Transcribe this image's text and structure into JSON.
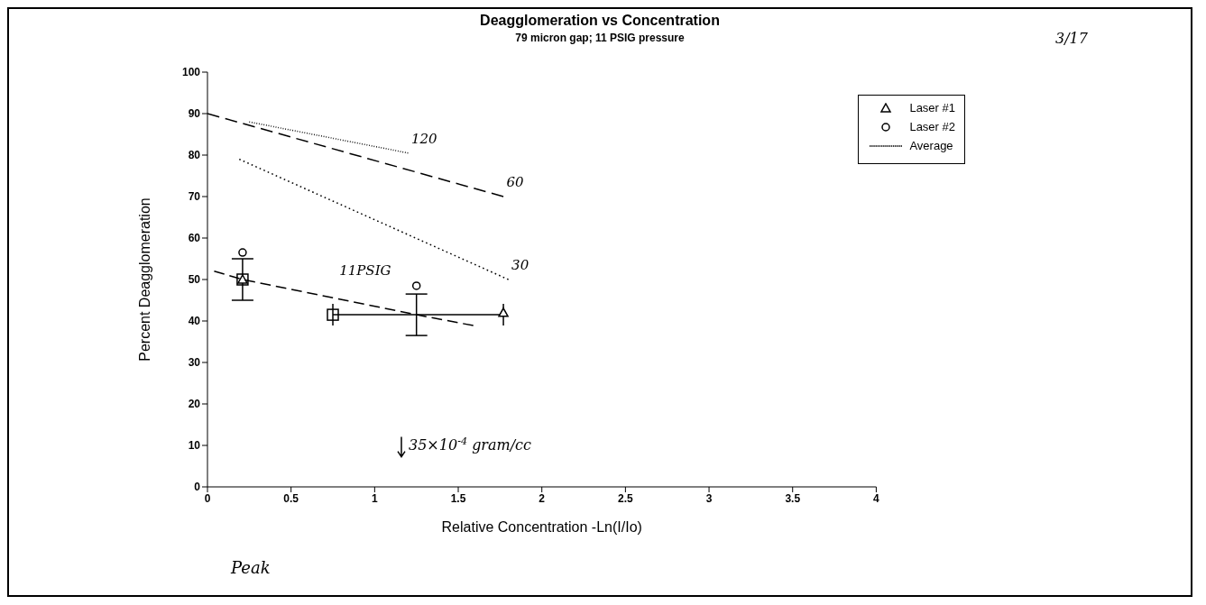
{
  "chart_data": {
    "type": "scatter",
    "title": "Deagglomeration vs  Concentration",
    "subtitle": "79 micron gap; 11 PSIG pressure",
    "xlabel": "Relative Concentration -Ln(I/Io)",
    "ylabel": "Percent Deagglomeration",
    "xlim": [
      0,
      4
    ],
    "xticks": [
      0,
      0.5,
      1,
      1.5,
      2,
      2.5,
      3,
      3.5,
      4
    ],
    "ylim": [
      0,
      100
    ],
    "yticks": [
      0,
      10,
      20,
      30,
      40,
      50,
      60,
      70,
      80,
      90,
      100
    ],
    "grid": false,
    "legend": "top right",
    "series": [
      {
        "color": "#000000",
        "marker": "square",
        "x": [
          0.21,
          0.75
        ],
        "values": [
          50,
          41.5
        ]
      },
      {
        "name": "Laser #1",
        "color": "#000000",
        "marker": "triangle",
        "x": [
          0.21,
          1.77
        ],
        "values": [
          50,
          42
        ]
      },
      {
        "name": "Laser #2",
        "color": "#000000",
        "marker": "circle",
        "x": [
          0.21,
          1.25
        ],
        "values": [
          56.5,
          48.5
        ]
      },
      {
        "name": "Average",
        "type": "line",
        "color": "#000000",
        "marker": "none",
        "line_style": "dashed",
        "x": [
          0.04,
          0.21,
          1.25,
          1.59
        ],
        "values": [
          52,
          50,
          41.5,
          38.9
        ],
        "errors": [
          null,
          [
            45,
            55
          ],
          [
            36.5,
            46.5
          ],
          null
        ],
        "xerrors": [
          null,
          null,
          [
            0.75,
            1.77
          ],
          null
        ]
      },
      {
        "name": "120",
        "type": "line",
        "color": "#000000",
        "marker": "none",
        "line_style": "dotted",
        "x": [
          0.25,
          1.2
        ],
        "values": [
          88,
          80.5
        ]
      },
      {
        "name": "60",
        "type": "line",
        "color": "#000000",
        "marker": "none",
        "line_style": "dashed",
        "x": [
          0,
          1.77
        ],
        "values": [
          90,
          70
        ]
      },
      {
        "name": "30",
        "type": "line",
        "color": "#000000",
        "marker": "none",
        "line_style": "dotted",
        "x": [
          0.19,
          1.8
        ],
        "values": [
          79,
          50
        ]
      }
    ],
    "annotations": [
      "3/17",
      "Peak",
      "35×10$^{-4}$ gram/cc",
      "11PSIG"
    ]
  }
}
